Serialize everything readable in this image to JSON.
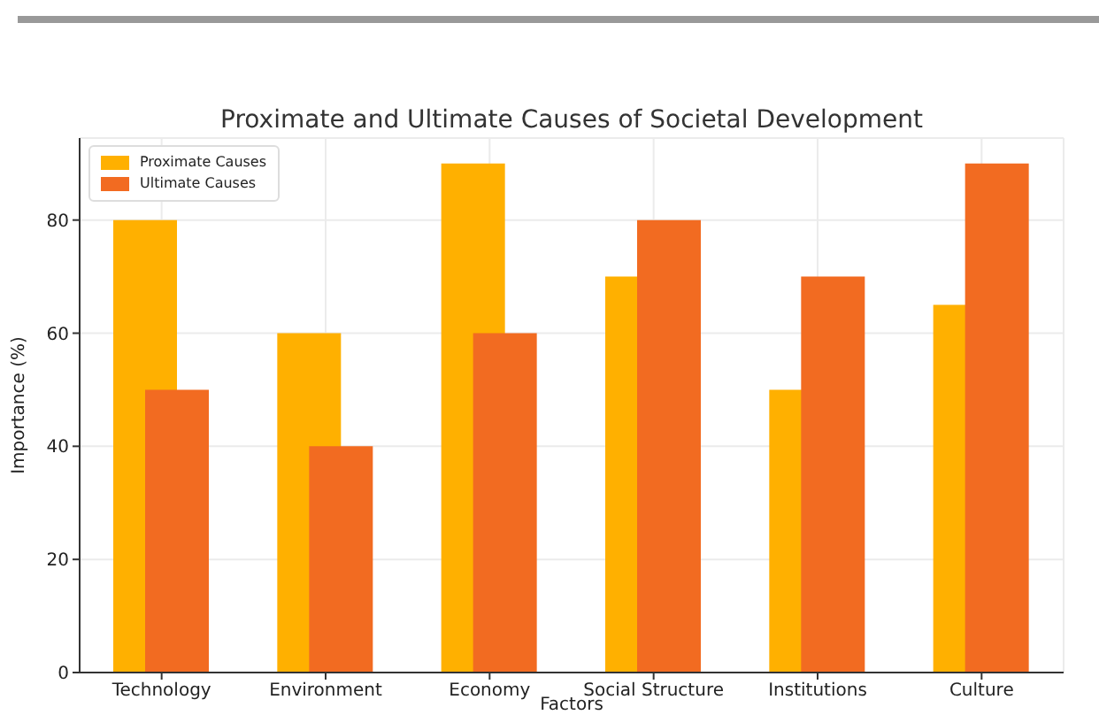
{
  "chart_data": {
    "type": "bar",
    "title": "Proximate and Ultimate Causes of Societal Development",
    "xlabel": "Factors",
    "ylabel": "Importance (%)",
    "categories": [
      "Technology",
      "Environment",
      "Economy",
      "Social Structure",
      "Institutions",
      "Culture"
    ],
    "series": [
      {
        "name": "Proximate Causes",
        "color": "#ffb000",
        "values": [
          80,
          60,
          90,
          70,
          50,
          65
        ]
      },
      {
        "name": "Ultimate Causes",
        "color": "#f26b21",
        "values": [
          50,
          40,
          60,
          80,
          70,
          90
        ]
      }
    ],
    "ylim": [
      0,
      94.5
    ],
    "yticks": [
      0,
      20,
      40,
      60,
      80
    ],
    "grid": true,
    "legend": "top left"
  }
}
